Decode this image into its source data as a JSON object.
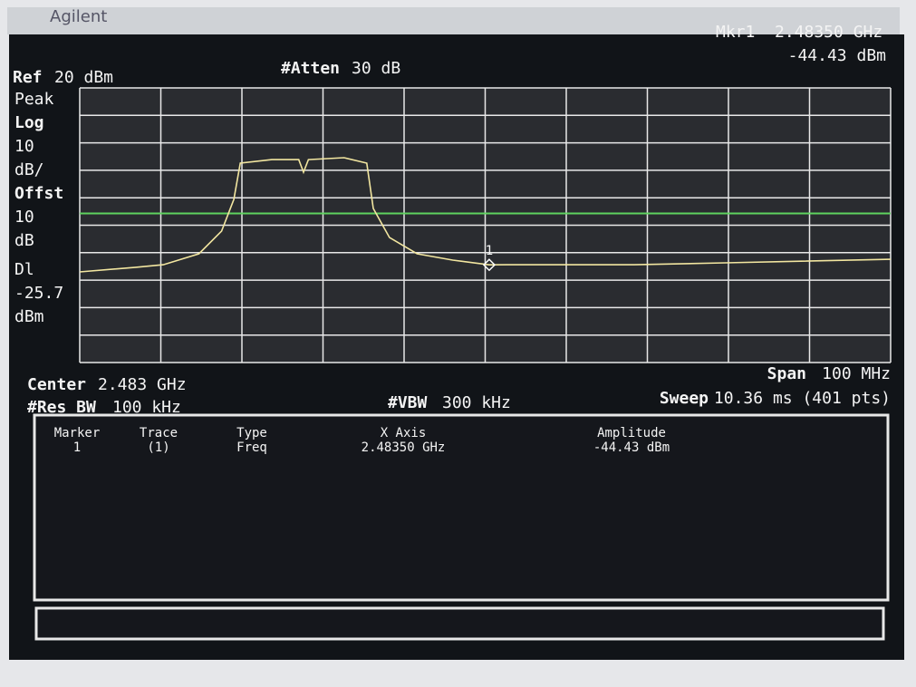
{
  "brand": "Agilent",
  "readout": {
    "marker": "Mkr1",
    "frequency": "2.48350 GHz",
    "amplitude": "-44.43 dBm"
  },
  "header": {
    "ref_key": "Ref",
    "ref_value": "20 dBm",
    "atten_key": "#Atten",
    "atten_value": "30 dB"
  },
  "left_labels": [
    "Peak",
    "Log",
    "10",
    "dB/",
    "Offst",
    "10",
    "dB",
    "Dl",
    "-25.7",
    "dBm"
  ],
  "footer": {
    "center_key": "Center",
    "center_value": "2.483 GHz",
    "rbw_key": "#Res BW",
    "rbw_value": "100 kHz",
    "vbw_key": "#VBW",
    "vbw_value": "300 kHz",
    "span_key": "Span",
    "span_value": "100 MHz",
    "sweep_key": "Sweep",
    "sweep_value": "10.36 ms (401 pts)"
  },
  "table": {
    "headers": [
      "Marker",
      "Trace",
      "Type",
      "X Axis",
      "Amplitude"
    ],
    "rows": [
      [
        "1",
        "(1)",
        "Freq",
        "2.48350 GHz",
        "-44.43 dBm"
      ]
    ]
  },
  "chart_data": {
    "type": "line",
    "x": [
      2.433,
      2.4399,
      2.4433,
      2.4477,
      2.4505,
      2.452,
      2.4528,
      2.4567,
      2.46,
      2.4606,
      2.4612,
      2.4656,
      2.4684,
      2.4692,
      2.4712,
      2.4746,
      2.479,
      2.4835,
      2.4857,
      2.5014,
      2.5126,
      2.533
    ],
    "values": [
      -47.0,
      -45.3,
      -44.4,
      -40.4,
      -32.1,
      -20.6,
      -7.4,
      -6.1,
      -6.1,
      -10.7,
      -6.1,
      -5.4,
      -7.4,
      -23.9,
      -34.5,
      -40.4,
      -42.7,
      -44.43,
      -44.4,
      -44.4,
      -43.7,
      -42.4
    ],
    "color": "#f2e6a0",
    "xlim": [
      2.433,
      2.533
    ],
    "ylim": [
      -80,
      20
    ],
    "xticks": [
      2.433,
      2.443,
      2.453,
      2.463,
      2.473,
      2.483,
      2.493,
      2.503,
      2.513,
      2.523,
      2.533
    ],
    "yticks": [
      20,
      10,
      0,
      -10,
      -20,
      -30,
      -40,
      -50,
      -60,
      -70,
      -80
    ],
    "grid": true,
    "display_line": -25.7,
    "display_line_color": "#5fd35f",
    "marker": {
      "x": 2.4835,
      "y": -44.43,
      "label": "1"
    }
  }
}
